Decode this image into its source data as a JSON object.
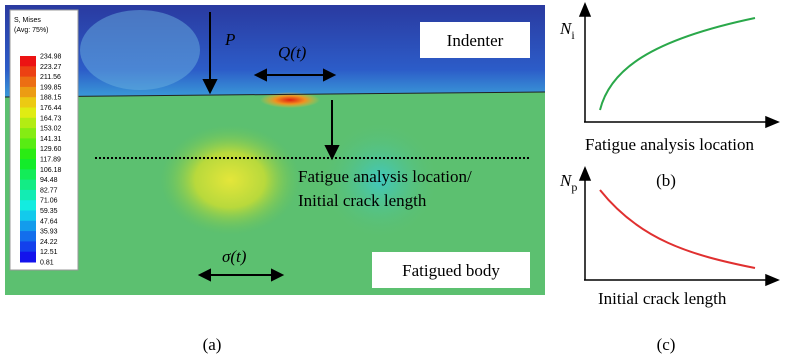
{
  "panel_a": {
    "legend": {
      "title": "S, Mises",
      "subtitle": "(Avg: 75%)",
      "values": [
        "234.98",
        "223.27",
        "211.56",
        "199.85",
        "188.15",
        "176.44",
        "164.73",
        "153.02",
        "141.31",
        "129.60",
        "117.89",
        "106.18",
        "94.48",
        "82.77",
        "71.06",
        "59.35",
        "47.64",
        "35.93",
        "24.22",
        "12.51",
        "0.81"
      ]
    },
    "load_p": "P",
    "load_q": "Q(t)",
    "indenter": "Indenter",
    "location_line1": "Fatigue analysis location/",
    "location_line2": "Initial crack length",
    "stress": "σ(t)",
    "body": "Fatigued body",
    "caption": "(a)"
  },
  "panel_b": {
    "y_symbol": "N",
    "y_subscript": "i",
    "x_label": "Fatigue analysis location",
    "caption": "(b)"
  },
  "panel_c": {
    "y_symbol": "N",
    "y_subscript": "p",
    "x_label": "Initial crack length",
    "caption": "(c)"
  }
}
